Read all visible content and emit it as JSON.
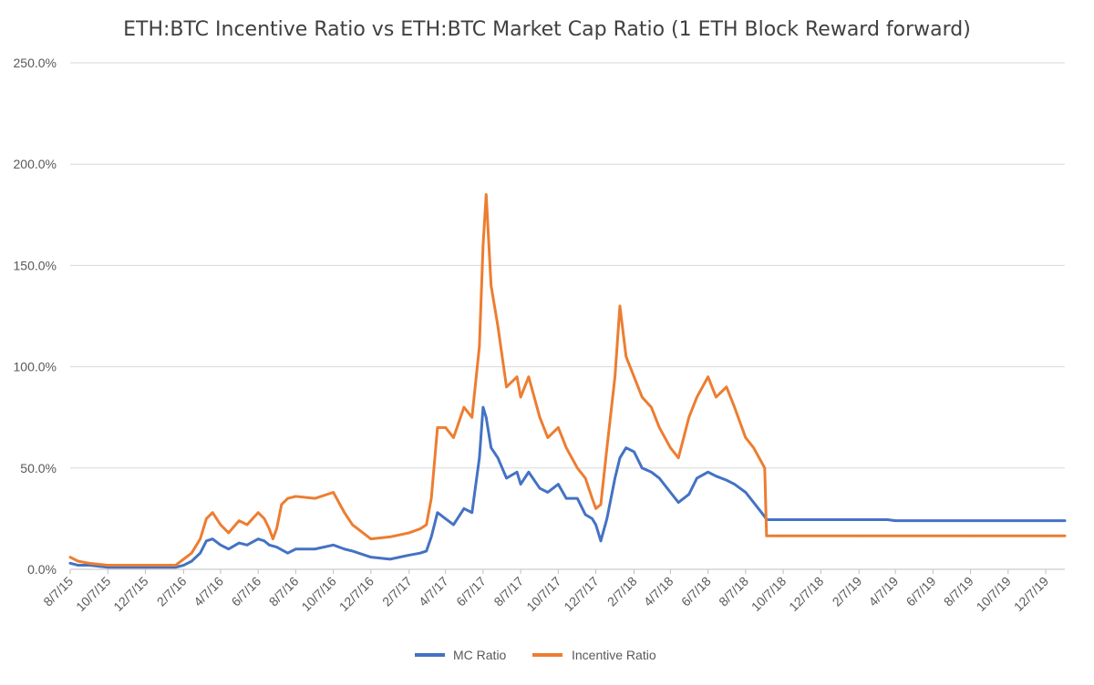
{
  "chart_data": {
    "type": "line",
    "title": "ETH:BTC Incentive Ratio vs ETH:BTC Market Cap Ratio (1 ETH Block Reward forward)",
    "xlabel": "",
    "ylabel": "",
    "ylim": [
      0,
      2.5
    ],
    "y_ticks": [
      0,
      0.5,
      1.0,
      1.5,
      2.0,
      2.5
    ],
    "y_tick_labels": [
      "0.0%",
      "50.0%",
      "100.0%",
      "150.0%",
      "200.0%",
      "250.0%"
    ],
    "x_range": [
      "2015-08-07",
      "2020-01-07"
    ],
    "x_ticks": [
      "2015-08-07",
      "2015-10-07",
      "2015-12-07",
      "2016-02-07",
      "2016-04-07",
      "2016-06-07",
      "2016-08-07",
      "2016-10-07",
      "2016-12-07",
      "2017-02-07",
      "2017-04-07",
      "2017-06-07",
      "2017-08-07",
      "2017-10-07",
      "2017-12-07",
      "2018-02-07",
      "2018-04-07",
      "2018-06-07",
      "2018-08-07",
      "2018-10-07",
      "2018-12-07",
      "2019-02-07",
      "2019-04-07",
      "2019-06-07",
      "2019-08-07",
      "2019-10-07",
      "2019-12-07"
    ],
    "x_tick_labels": [
      "8/7/15",
      "10/7/15",
      "12/7/15",
      "2/7/16",
      "4/7/16",
      "6/7/16",
      "8/7/16",
      "10/7/16",
      "12/7/16",
      "2/7/17",
      "4/7/17",
      "6/7/17",
      "8/7/17",
      "10/7/17",
      "12/7/17",
      "2/7/18",
      "4/7/18",
      "6/7/18",
      "8/7/18",
      "10/7/18",
      "12/7/18",
      "2/7/19",
      "4/7/19",
      "6/7/19",
      "8/7/19",
      "10/7/19",
      "12/7/19"
    ],
    "grid": true,
    "legend_position": "bottom",
    "series": [
      {
        "name": "MC Ratio",
        "color": "#4472c4",
        "x": [
          "2015-08-07",
          "2015-08-20",
          "2015-09-07",
          "2015-10-07",
          "2015-11-07",
          "2015-12-07",
          "2016-01-07",
          "2016-01-25",
          "2016-02-07",
          "2016-02-20",
          "2016-03-05",
          "2016-03-15",
          "2016-03-25",
          "2016-04-07",
          "2016-04-20",
          "2016-05-07",
          "2016-05-20",
          "2016-06-07",
          "2016-06-17",
          "2016-06-25",
          "2016-07-07",
          "2016-07-25",
          "2016-08-07",
          "2016-09-07",
          "2016-10-07",
          "2016-10-25",
          "2016-11-07",
          "2016-12-07",
          "2017-01-07",
          "2017-02-07",
          "2017-02-25",
          "2017-03-07",
          "2017-03-15",
          "2017-03-25",
          "2017-04-07",
          "2017-04-20",
          "2017-05-07",
          "2017-05-20",
          "2017-06-01",
          "2017-06-07",
          "2017-06-12",
          "2017-06-20",
          "2017-07-01",
          "2017-07-15",
          "2017-08-01",
          "2017-08-07",
          "2017-08-20",
          "2017-09-07",
          "2017-09-20",
          "2017-10-07",
          "2017-10-20",
          "2017-11-07",
          "2017-11-20",
          "2017-12-01",
          "2017-12-07",
          "2017-12-15",
          "2017-12-25",
          "2018-01-07",
          "2018-01-15",
          "2018-01-25",
          "2018-02-07",
          "2018-02-20",
          "2018-03-07",
          "2018-03-20",
          "2018-04-07",
          "2018-04-20",
          "2018-05-07",
          "2018-05-20",
          "2018-06-07",
          "2018-06-20",
          "2018-07-07",
          "2018-07-20",
          "2018-08-07",
          "2018-08-20",
          "2018-09-07",
          "2018-09-10",
          "2018-10-07",
          "2018-12-07",
          "2019-02-07",
          "2019-03-07",
          "2019-03-25",
          "2019-04-07",
          "2019-06-07",
          "2019-08-07",
          "2019-10-07",
          "2019-12-07",
          "2020-01-07"
        ],
        "y": [
          0.03,
          0.02,
          0.02,
          0.01,
          0.01,
          0.01,
          0.01,
          0.01,
          0.02,
          0.04,
          0.08,
          0.14,
          0.15,
          0.12,
          0.1,
          0.13,
          0.12,
          0.15,
          0.14,
          0.12,
          0.11,
          0.08,
          0.1,
          0.1,
          0.12,
          0.1,
          0.09,
          0.06,
          0.05,
          0.07,
          0.08,
          0.09,
          0.16,
          0.28,
          0.25,
          0.22,
          0.3,
          0.28,
          0.55,
          0.8,
          0.75,
          0.6,
          0.55,
          0.45,
          0.48,
          0.42,
          0.48,
          0.4,
          0.38,
          0.42,
          0.35,
          0.35,
          0.27,
          0.25,
          0.22,
          0.14,
          0.25,
          0.45,
          0.55,
          0.6,
          0.58,
          0.5,
          0.48,
          0.45,
          0.38,
          0.33,
          0.37,
          0.45,
          0.48,
          0.46,
          0.44,
          0.42,
          0.38,
          0.33,
          0.26,
          0.245,
          0.245,
          0.245,
          0.245,
          0.245,
          0.245,
          0.24,
          0.24,
          0.24,
          0.24,
          0.24,
          0.24
        ]
      },
      {
        "name": "Incentive Ratio",
        "color": "#ed7d31",
        "x": [
          "2015-08-07",
          "2015-08-20",
          "2015-09-07",
          "2015-10-07",
          "2015-11-07",
          "2015-12-07",
          "2016-01-07",
          "2016-01-25",
          "2016-02-07",
          "2016-02-20",
          "2016-03-05",
          "2016-03-15",
          "2016-03-25",
          "2016-04-07",
          "2016-04-20",
          "2016-05-07",
          "2016-05-20",
          "2016-06-07",
          "2016-06-17",
          "2016-06-25",
          "2016-07-01",
          "2016-07-07",
          "2016-07-15",
          "2016-07-25",
          "2016-08-07",
          "2016-09-07",
          "2016-10-07",
          "2016-10-25",
          "2016-11-07",
          "2016-12-07",
          "2017-01-07",
          "2017-02-07",
          "2017-02-25",
          "2017-03-07",
          "2017-03-15",
          "2017-03-25",
          "2017-04-07",
          "2017-04-20",
          "2017-05-07",
          "2017-05-20",
          "2017-06-01",
          "2017-06-07",
          "2017-06-12",
          "2017-06-20",
          "2017-07-01",
          "2017-07-15",
          "2017-08-01",
          "2017-08-07",
          "2017-08-20",
          "2017-09-07",
          "2017-09-20",
          "2017-10-07",
          "2017-10-20",
          "2017-11-07",
          "2017-11-20",
          "2017-12-01",
          "2017-12-07",
          "2017-12-15",
          "2017-12-25",
          "2018-01-07",
          "2018-01-15",
          "2018-01-25",
          "2018-02-07",
          "2018-02-20",
          "2018-03-07",
          "2018-03-20",
          "2018-04-07",
          "2018-04-20",
          "2018-05-07",
          "2018-05-20",
          "2018-06-07",
          "2018-06-20",
          "2018-07-07",
          "2018-07-20",
          "2018-08-07",
          "2018-08-20",
          "2018-09-07",
          "2018-09-10",
          "2018-10-07",
          "2018-12-07",
          "2019-02-07",
          "2019-04-07",
          "2019-06-07",
          "2019-08-07",
          "2019-10-07",
          "2019-12-07",
          "2020-01-07"
        ],
        "y": [
          0.06,
          0.04,
          0.03,
          0.02,
          0.02,
          0.02,
          0.02,
          0.02,
          0.05,
          0.08,
          0.15,
          0.25,
          0.28,
          0.22,
          0.18,
          0.24,
          0.22,
          0.28,
          0.25,
          0.2,
          0.15,
          0.2,
          0.32,
          0.35,
          0.36,
          0.35,
          0.38,
          0.28,
          0.22,
          0.15,
          0.16,
          0.18,
          0.2,
          0.22,
          0.35,
          0.7,
          0.7,
          0.65,
          0.8,
          0.75,
          1.1,
          1.6,
          1.85,
          1.4,
          1.2,
          0.9,
          0.95,
          0.85,
          0.95,
          0.75,
          0.65,
          0.7,
          0.6,
          0.5,
          0.45,
          0.35,
          0.3,
          0.32,
          0.6,
          0.95,
          1.3,
          1.05,
          0.95,
          0.85,
          0.8,
          0.7,
          0.6,
          0.55,
          0.75,
          0.85,
          0.95,
          0.85,
          0.9,
          0.8,
          0.65,
          0.6,
          0.5,
          0.165,
          0.165,
          0.165,
          0.165,
          0.165,
          0.165,
          0.165,
          0.165,
          0.165,
          0.165
        ]
      }
    ]
  }
}
